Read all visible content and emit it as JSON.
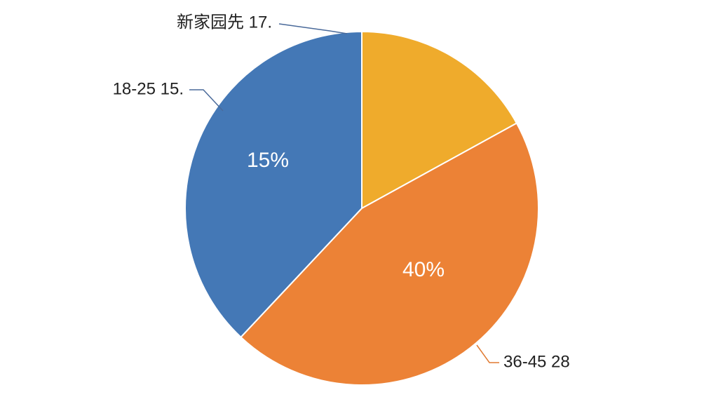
{
  "chart_data": {
    "type": "pie",
    "categories": [
      "新家园先 17.",
      "36-45 28",
      "18-25 15."
    ],
    "values": [
      17,
      45,
      38
    ],
    "colors": [
      "#efab2c",
      "#ec8236",
      "#4478b6"
    ],
    "annotations": [
      "15%",
      "40%"
    ]
  }
}
